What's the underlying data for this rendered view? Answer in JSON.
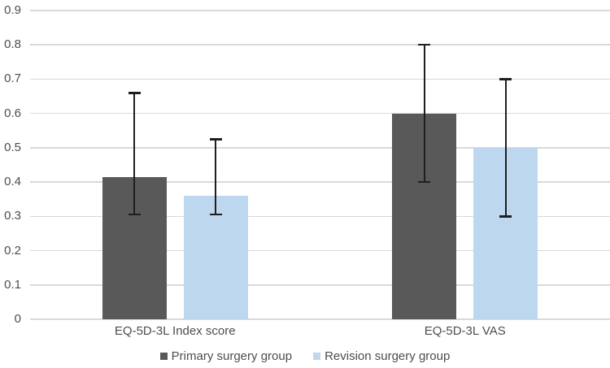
{
  "colors": {
    "background": "#ffffff",
    "gridline": "#d9d9d9",
    "axis_text": "#4d4d4d",
    "error_bar": "#1f1f1f",
    "primary_series": "#595959",
    "revision_series": "#bdd7ee"
  },
  "legend": {
    "items": [
      {
        "label": "Primary surgery group",
        "color": "#595959"
      },
      {
        "label": "Revision surgery group",
        "color": "#bdd7ee"
      }
    ]
  },
  "chart_data": {
    "type": "bar",
    "title": "",
    "xlabel": "",
    "ylabel": "",
    "categories": [
      "EQ-5D-3L Index score",
      "EQ-5D-3L VAS"
    ],
    "series": [
      {
        "name": "Primary surgery group",
        "color": "#595959",
        "values": [
          0.415,
          0.6
        ],
        "error_low": [
          0.305,
          0.4
        ],
        "error_high": [
          0.66,
          0.8
        ]
      },
      {
        "name": "Revision surgery group",
        "color": "#bdd7ee",
        "values": [
          0.36,
          0.5
        ],
        "error_low": [
          0.305,
          0.3
        ],
        "error_high": [
          0.525,
          0.7
        ]
      }
    ],
    "ylim": [
      0,
      0.9
    ],
    "ytick_step": 0.1,
    "ytick_labels": [
      "0",
      "0.1",
      "0.2",
      "0.3",
      "0.4",
      "0.5",
      "0.6",
      "0.7",
      "0.8",
      "0.9"
    ],
    "grid": true,
    "legend_position": "bottom"
  }
}
